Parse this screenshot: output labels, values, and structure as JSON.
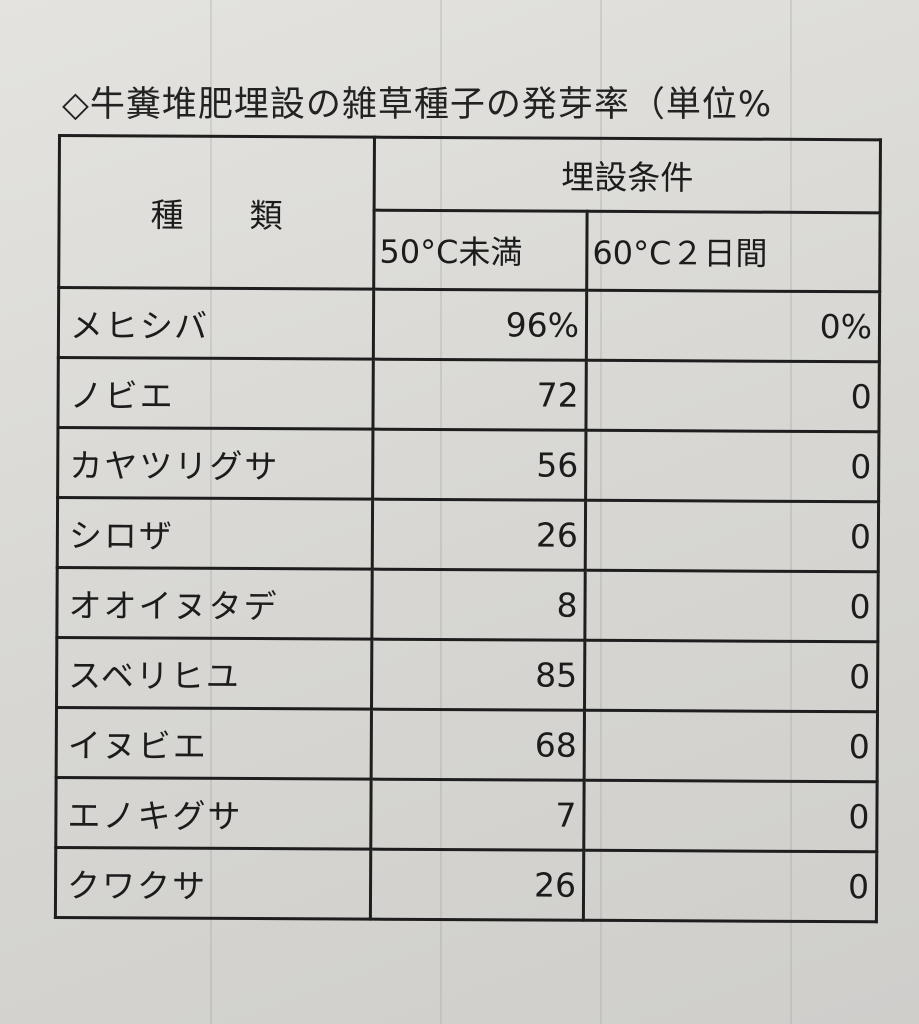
{
  "title": "◇牛糞堆肥埋設の雑草種子の発芽率（単位%",
  "table": {
    "header_kind": "種　　類",
    "header_group": "埋設条件",
    "columns": [
      "50°C未満",
      "60°C２日間"
    ],
    "rows": [
      {
        "name": "メヒシバ",
        "below50": "96%",
        "sixty2days": "0%"
      },
      {
        "name": "ノビエ",
        "below50": "72",
        "sixty2days": "0"
      },
      {
        "name": "カヤツリグサ",
        "below50": "56",
        "sixty2days": "0"
      },
      {
        "name": "シロザ",
        "below50": "26",
        "sixty2days": "0"
      },
      {
        "name": "オオイヌタデ",
        "below50": "8",
        "sixty2days": "0"
      },
      {
        "name": "スベリヒユ",
        "below50": "85",
        "sixty2days": "0"
      },
      {
        "name": "イヌビエ",
        "below50": "68",
        "sixty2days": "0"
      },
      {
        "name": "エノキグサ",
        "below50": "7",
        "sixty2days": "0"
      },
      {
        "name": "クワクサ",
        "below50": "26",
        "sixty2days": "0"
      }
    ]
  }
}
